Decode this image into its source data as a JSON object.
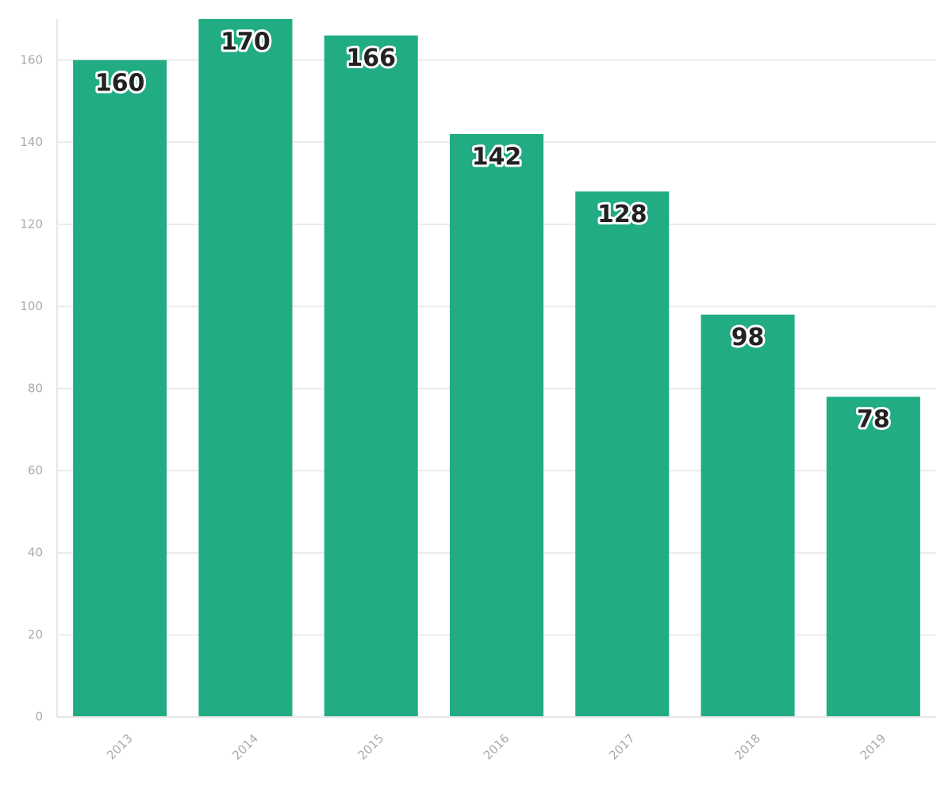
{
  "chart_data": {
    "type": "bar",
    "categories": [
      "2013",
      "2014",
      "2015",
      "2016",
      "2017",
      "2018",
      "2019"
    ],
    "values": [
      160,
      170,
      166,
      142,
      128,
      98,
      78
    ],
    "color": "#21ac83",
    "ylim": [
      0,
      170
    ],
    "yticks": [
      0,
      20,
      40,
      60,
      80,
      100,
      120,
      140,
      160
    ],
    "grid": true
  }
}
